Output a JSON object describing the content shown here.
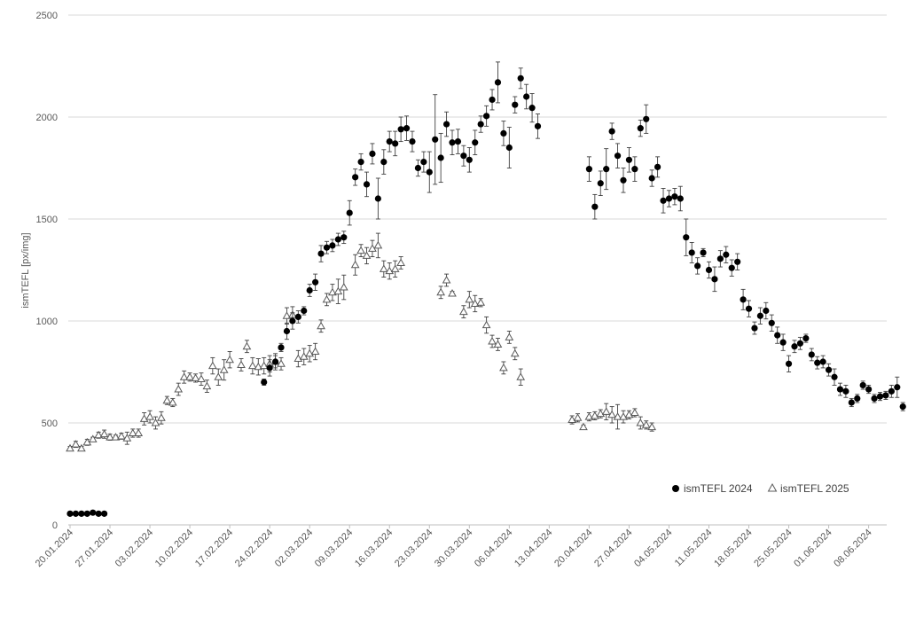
{
  "chart_data": {
    "type": "scatter",
    "ylabel": "ismTEFL [px/img]",
    "xlabel": "",
    "title": "",
    "ylim": [
      0,
      2500
    ],
    "yticks": [
      0,
      500,
      1000,
      1500,
      2000,
      2500
    ],
    "xlim": [
      "2024-01-20",
      "2024-06-15"
    ],
    "xtick_labels": [
      "20.01.2024",
      "27.01.2024",
      "03.02.2024",
      "10.02.2024",
      "17.02.2024",
      "24.02.2024",
      "02.03.2024",
      "09.03.2024",
      "16.03.2024",
      "23.03.2024",
      "30.03.2024",
      "06.04.2024",
      "13.04.2024",
      "20.04.2024",
      "27.04.2024",
      "04.05.2024",
      "11.05.2024",
      "18.05.2024",
      "25.05.2024",
      "01.06.2024",
      "08.06.2024"
    ],
    "grid": "horizontal",
    "legend_position": "bottom-right",
    "colors": {
      "series_2024": "#000000",
      "series_2025": "#595959",
      "grid": "#d9d9d9",
      "error_bar": "#404040"
    },
    "series": [
      {
        "name": "ismTEFL 2024",
        "marker": "circle",
        "points": [
          [
            "2024-01-20",
            55,
            0
          ],
          [
            "2024-01-21",
            55,
            0
          ],
          [
            "2024-01-22",
            55,
            0
          ],
          [
            "2024-01-23",
            55,
            0
          ],
          [
            "2024-01-24",
            60,
            0
          ],
          [
            "2024-01-25",
            55,
            0
          ],
          [
            "2024-01-26",
            55,
            0
          ],
          [
            "2024-02-23",
            700,
            15
          ],
          [
            "2024-02-24",
            770,
            40
          ],
          [
            "2024-02-25",
            800,
            30
          ],
          [
            "2024-02-26",
            870,
            20
          ],
          [
            "2024-02-27",
            950,
            40
          ],
          [
            "2024-02-28",
            1000,
            40
          ],
          [
            "2024-02-29",
            1020,
            30
          ],
          [
            "2024-03-01",
            1050,
            20
          ],
          [
            "2024-03-02",
            1150,
            30
          ],
          [
            "2024-03-03",
            1190,
            40
          ],
          [
            "2024-03-04",
            1330,
            40
          ],
          [
            "2024-03-05",
            1360,
            30
          ],
          [
            "2024-03-06",
            1370,
            30
          ],
          [
            "2024-03-07",
            1400,
            30
          ],
          [
            "2024-03-08",
            1410,
            30
          ],
          [
            "2024-03-09",
            1530,
            60
          ],
          [
            "2024-03-10",
            1705,
            40
          ],
          [
            "2024-03-11",
            1780,
            40
          ],
          [
            "2024-03-12",
            1670,
            60
          ],
          [
            "2024-03-13",
            1820,
            50
          ],
          [
            "2024-03-14",
            1600,
            100
          ],
          [
            "2024-03-15",
            1780,
            60
          ],
          [
            "2024-03-16",
            1880,
            50
          ],
          [
            "2024-03-17",
            1870,
            60
          ],
          [
            "2024-03-18",
            1940,
            60
          ],
          [
            "2024-03-19",
            1945,
            60
          ],
          [
            "2024-03-20",
            1880,
            50
          ],
          [
            "2024-03-21",
            1750,
            40
          ],
          [
            "2024-03-22",
            1780,
            50
          ],
          [
            "2024-03-23",
            1730,
            100
          ],
          [
            "2024-03-24",
            1890,
            220
          ],
          [
            "2024-03-25",
            1800,
            120
          ],
          [
            "2024-03-26",
            1965,
            60
          ],
          [
            "2024-03-27",
            1875,
            60
          ],
          [
            "2024-03-28",
            1880,
            60
          ],
          [
            "2024-03-29",
            1810,
            50
          ],
          [
            "2024-03-30",
            1790,
            60
          ],
          [
            "2024-03-31",
            1875,
            60
          ],
          [
            "2024-04-01",
            1965,
            40
          ],
          [
            "2024-04-02",
            2005,
            50
          ],
          [
            "2024-04-03",
            2085,
            50
          ],
          [
            "2024-04-04",
            2170,
            100
          ],
          [
            "2024-04-05",
            1920,
            60
          ],
          [
            "2024-04-06",
            1850,
            100
          ],
          [
            "2024-04-07",
            2060,
            40
          ],
          [
            "2024-04-08",
            2190,
            50
          ],
          [
            "2024-04-09",
            2100,
            60
          ],
          [
            "2024-04-10",
            2045,
            70
          ],
          [
            "2024-04-11",
            1955,
            60
          ],
          [
            "2024-04-20",
            1745,
            60
          ],
          [
            "2024-04-21",
            1560,
            60
          ],
          [
            "2024-04-22",
            1675,
            60
          ],
          [
            "2024-04-23",
            1745,
            100
          ],
          [
            "2024-04-24",
            1930,
            40
          ],
          [
            "2024-04-25",
            1810,
            60
          ],
          [
            "2024-04-26",
            1690,
            60
          ],
          [
            "2024-04-27",
            1790,
            60
          ],
          [
            "2024-04-28",
            1745,
            60
          ],
          [
            "2024-04-29",
            1945,
            40
          ],
          [
            "2024-04-30",
            1990,
            70
          ],
          [
            "2024-05-01",
            1700,
            40
          ],
          [
            "2024-05-02",
            1755,
            50
          ],
          [
            "2024-05-03",
            1590,
            60
          ],
          [
            "2024-05-04",
            1600,
            40
          ],
          [
            "2024-05-05",
            1610,
            40
          ],
          [
            "2024-05-06",
            1600,
            60
          ],
          [
            "2024-05-07",
            1410,
            90
          ],
          [
            "2024-05-08",
            1335,
            50
          ],
          [
            "2024-05-09",
            1270,
            40
          ],
          [
            "2024-05-10",
            1335,
            20
          ],
          [
            "2024-05-11",
            1250,
            40
          ],
          [
            "2024-05-12",
            1205,
            60
          ],
          [
            "2024-05-13",
            1305,
            40
          ],
          [
            "2024-05-14",
            1325,
            40
          ],
          [
            "2024-05-15",
            1260,
            40
          ],
          [
            "2024-05-16",
            1290,
            40
          ],
          [
            "2024-05-17",
            1105,
            50
          ],
          [
            "2024-05-18",
            1060,
            40
          ],
          [
            "2024-05-19",
            965,
            30
          ],
          [
            "2024-05-20",
            1025,
            40
          ],
          [
            "2024-05-21",
            1050,
            40
          ],
          [
            "2024-05-22",
            990,
            40
          ],
          [
            "2024-05-23",
            930,
            40
          ],
          [
            "2024-05-24",
            895,
            40
          ],
          [
            "2024-05-25",
            790,
            40
          ],
          [
            "2024-05-26",
            875,
            30
          ],
          [
            "2024-05-27",
            890,
            30
          ],
          [
            "2024-05-28",
            915,
            20
          ],
          [
            "2024-05-29",
            835,
            30
          ],
          [
            "2024-05-30",
            795,
            30
          ],
          [
            "2024-05-31",
            800,
            30
          ],
          [
            "2024-06-01",
            760,
            30
          ],
          [
            "2024-06-02",
            725,
            40
          ],
          [
            "2024-06-03",
            665,
            30
          ],
          [
            "2024-06-04",
            655,
            30
          ],
          [
            "2024-06-05",
            600,
            20
          ],
          [
            "2024-06-06",
            620,
            20
          ],
          [
            "2024-06-07",
            685,
            20
          ],
          [
            "2024-06-08",
            665,
            20
          ],
          [
            "2024-06-09",
            620,
            20
          ],
          [
            "2024-06-10",
            630,
            20
          ],
          [
            "2024-06-11",
            635,
            20
          ],
          [
            "2024-06-12",
            655,
            30
          ],
          [
            "2024-06-13",
            675,
            50
          ],
          [
            "2024-06-14",
            580,
            20
          ]
        ]
      },
      {
        "name": "ismTEFL 2025",
        "marker": "triangle",
        "points": [
          [
            "2024-01-20",
            375,
            10
          ],
          [
            "2024-01-21",
            395,
            15
          ],
          [
            "2024-01-22",
            375,
            10
          ],
          [
            "2024-01-23",
            405,
            15
          ],
          [
            "2024-01-24",
            420,
            10
          ],
          [
            "2024-01-25",
            440,
            15
          ],
          [
            "2024-01-26",
            445,
            20
          ],
          [
            "2024-01-27",
            430,
            15
          ],
          [
            "2024-01-28",
            430,
            10
          ],
          [
            "2024-01-29",
            435,
            15
          ],
          [
            "2024-01-30",
            425,
            30
          ],
          [
            "2024-01-31",
            450,
            20
          ],
          [
            "2024-02-01",
            450,
            20
          ],
          [
            "2024-02-02",
            520,
            30
          ],
          [
            "2024-02-03",
            530,
            30
          ],
          [
            "2024-02-04",
            500,
            30
          ],
          [
            "2024-02-05",
            525,
            30
          ],
          [
            "2024-02-06",
            610,
            20
          ],
          [
            "2024-02-07",
            600,
            20
          ],
          [
            "2024-02-08",
            665,
            30
          ],
          [
            "2024-02-09",
            725,
            30
          ],
          [
            "2024-02-10",
            725,
            20
          ],
          [
            "2024-02-11",
            720,
            20
          ],
          [
            "2024-02-12",
            715,
            30
          ],
          [
            "2024-02-13",
            680,
            30
          ],
          [
            "2024-02-14",
            780,
            40
          ],
          [
            "2024-02-15",
            725,
            40
          ],
          [
            "2024-02-16",
            760,
            50
          ],
          [
            "2024-02-17",
            810,
            40
          ],
          [
            "2024-02-19",
            785,
            30
          ],
          [
            "2024-02-20",
            875,
            30
          ],
          [
            "2024-02-21",
            780,
            40
          ],
          [
            "2024-02-22",
            775,
            40
          ],
          [
            "2024-02-23",
            780,
            40
          ],
          [
            "2024-02-24",
            790,
            40
          ],
          [
            "2024-02-25",
            800,
            40
          ],
          [
            "2024-02-26",
            790,
            30
          ],
          [
            "2024-02-27",
            1025,
            40
          ],
          [
            "2024-02-28",
            1030,
            40
          ],
          [
            "2024-02-29",
            815,
            40
          ],
          [
            "2024-03-01",
            825,
            40
          ],
          [
            "2024-03-02",
            840,
            40
          ],
          [
            "2024-03-03",
            850,
            40
          ],
          [
            "2024-03-04",
            975,
            30
          ],
          [
            "2024-03-05",
            1105,
            30
          ],
          [
            "2024-03-06",
            1140,
            40
          ],
          [
            "2024-03-07",
            1145,
            60
          ],
          [
            "2024-03-08",
            1165,
            60
          ],
          [
            "2024-03-10",
            1275,
            50
          ],
          [
            "2024-03-11",
            1345,
            30
          ],
          [
            "2024-03-12",
            1320,
            40
          ],
          [
            "2024-03-13",
            1355,
            40
          ],
          [
            "2024-03-14",
            1370,
            60
          ],
          [
            "2024-03-15",
            1255,
            40
          ],
          [
            "2024-03-16",
            1245,
            40
          ],
          [
            "2024-03-17",
            1255,
            40
          ],
          [
            "2024-03-18",
            1285,
            30
          ],
          [
            "2024-03-25",
            1140,
            30
          ],
          [
            "2024-03-26",
            1200,
            30
          ],
          [
            "2024-03-27",
            1135,
            10
          ],
          [
            "2024-03-29",
            1045,
            30
          ],
          [
            "2024-03-30",
            1105,
            40
          ],
          [
            "2024-03-31",
            1085,
            40
          ],
          [
            "2024-04-01",
            1090,
            20
          ],
          [
            "2024-04-02",
            980,
            40
          ],
          [
            "2024-04-03",
            900,
            30
          ],
          [
            "2024-04-04",
            885,
            30
          ],
          [
            "2024-04-05",
            770,
            30
          ],
          [
            "2024-04-06",
            920,
            30
          ],
          [
            "2024-04-07",
            840,
            30
          ],
          [
            "2024-04-08",
            725,
            40
          ],
          [
            "2024-04-17",
            515,
            20
          ],
          [
            "2024-04-18",
            525,
            20
          ],
          [
            "2024-04-19",
            480,
            10
          ],
          [
            "2024-04-20",
            530,
            20
          ],
          [
            "2024-04-21",
            535,
            20
          ],
          [
            "2024-04-22",
            545,
            20
          ],
          [
            "2024-04-23",
            555,
            40
          ],
          [
            "2024-04-24",
            540,
            40
          ],
          [
            "2024-04-25",
            530,
            60
          ],
          [
            "2024-04-26",
            530,
            30
          ],
          [
            "2024-04-27",
            540,
            20
          ],
          [
            "2024-04-28",
            550,
            20
          ],
          [
            "2024-04-29",
            500,
            30
          ],
          [
            "2024-04-30",
            490,
            20
          ],
          [
            "2024-05-01",
            480,
            20
          ]
        ]
      }
    ]
  }
}
